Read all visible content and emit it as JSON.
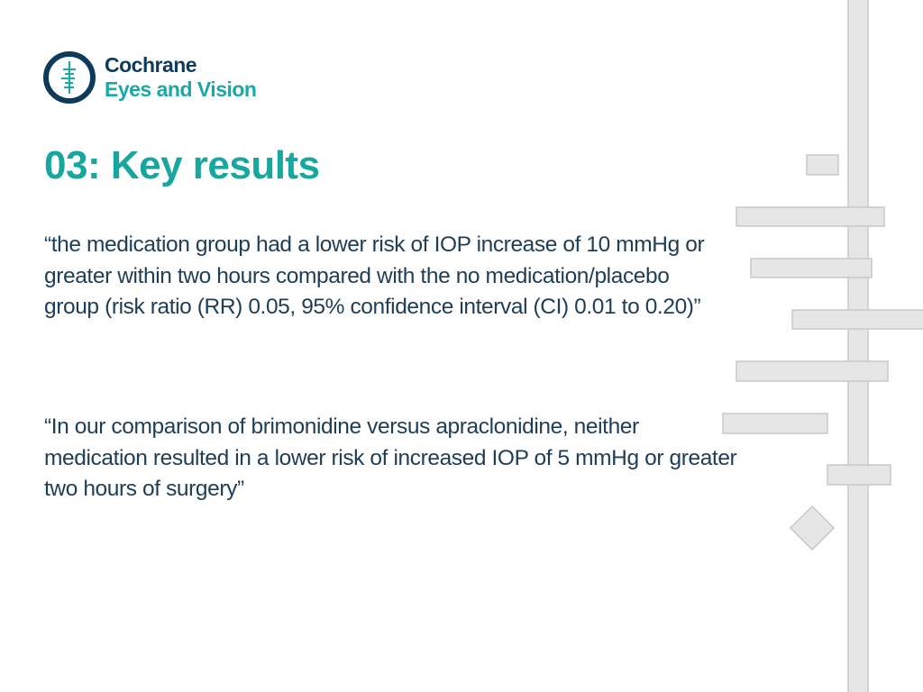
{
  "logo": {
    "line1": "Cochrane",
    "line2": "Eyes and Vision",
    "icon": "cochrane-logo-icon"
  },
  "title": "03: Key results",
  "quotes": [
    "“the medication group had a lower risk of IOP increase of 10 mmHg or greater within two hours compared with the no medication/placebo group (risk ratio (RR) 0.05, 95% confidence interval (CI) 0.01 to 0.20)”",
    "“In our comparison of brimonidine versus apraclonidine, neither medication resulted in a lower risk of increased IOP of 5 mmHg or greater two hours of surgery”"
  ],
  "colors": {
    "brand_navy": "#0e3b5c",
    "brand_teal": "#1aa8a8",
    "title_teal": "#17a6a0",
    "body_text": "#1e3d57",
    "deco_fill": "#e6e6e6",
    "deco_stroke": "#c8c8c8"
  }
}
